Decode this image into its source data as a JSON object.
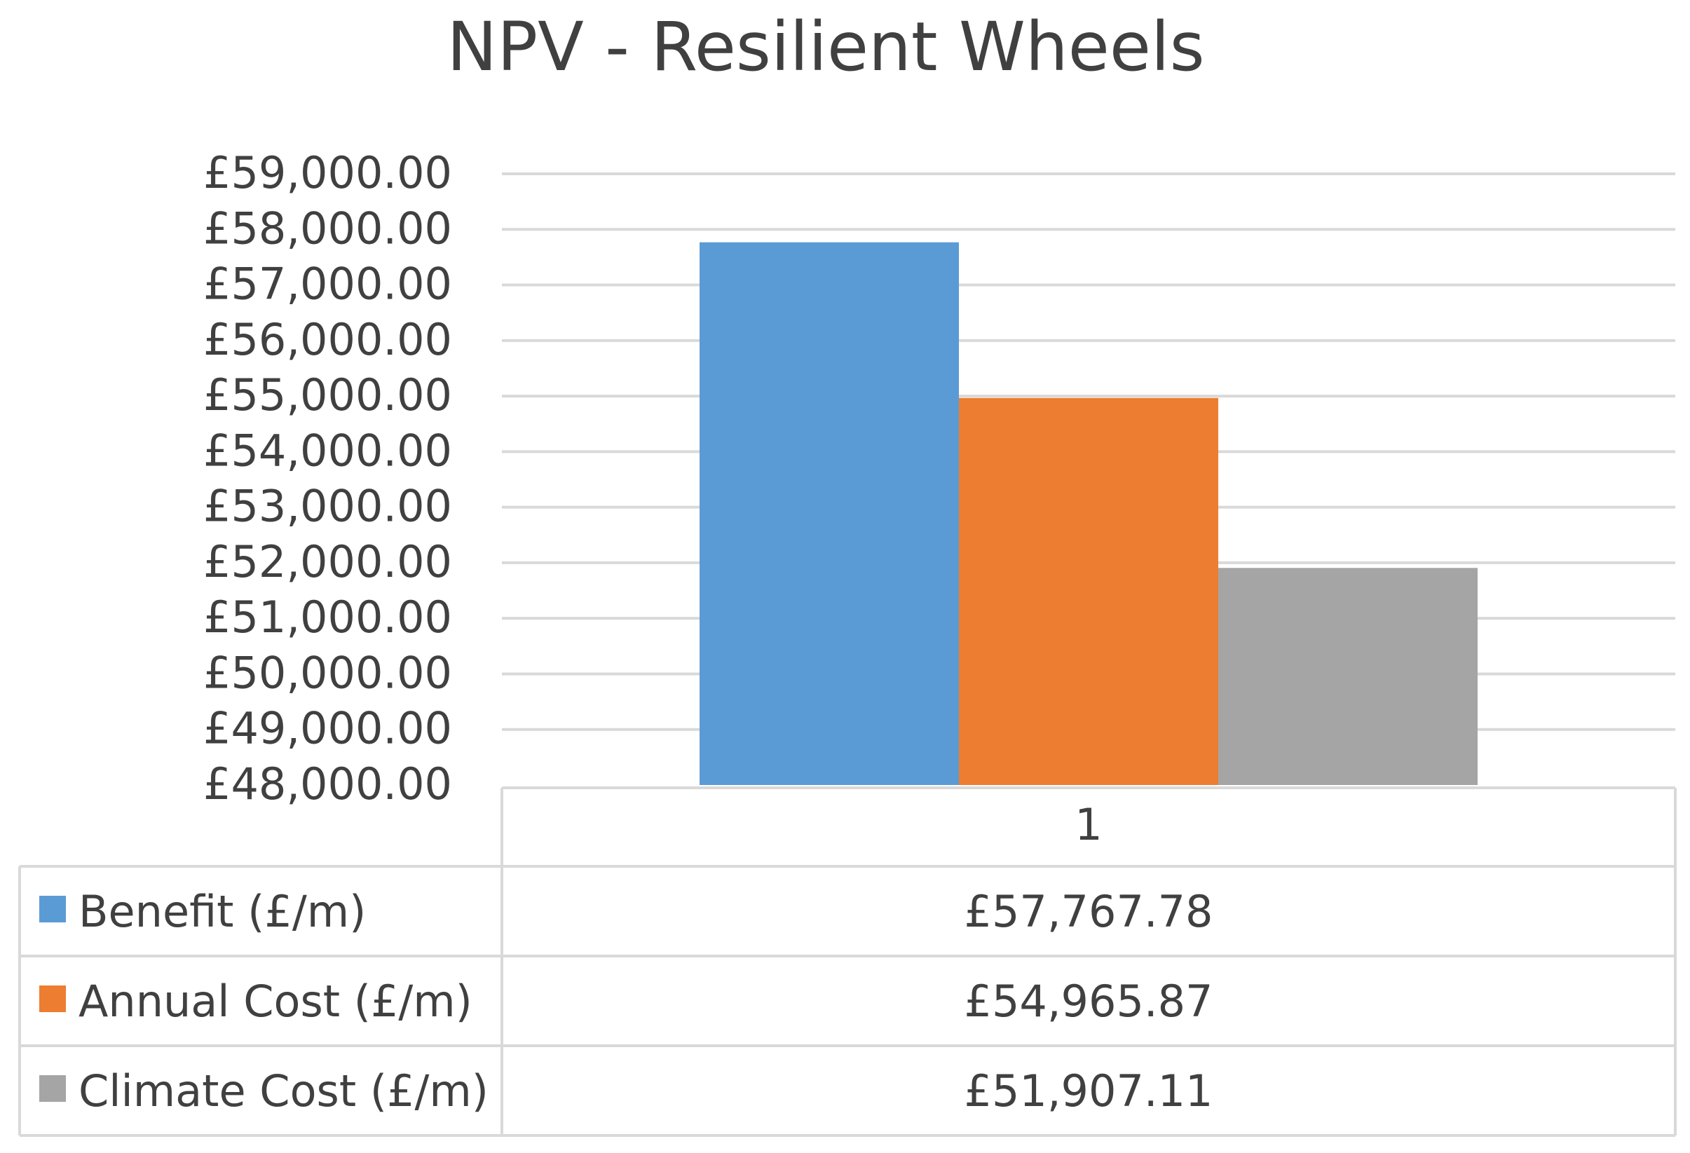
{
  "chart_data": {
    "type": "bar",
    "title": "NPV - Resilient Wheels",
    "categories": [
      "1"
    ],
    "series": [
      {
        "name": "Benefit (£/m)",
        "values": [
          57767.78
        ],
        "color": "#5B9BD5",
        "label": "£57,767.78"
      },
      {
        "name": "Annual Cost (£/m)",
        "values": [
          54965.87
        ],
        "color": "#ED7D31",
        "label": "£54,965.87"
      },
      {
        "name": "Climate Cost (£/m)",
        "values": [
          51907.11
        ],
        "color": "#A5A5A5",
        "label": "£51,907.11"
      }
    ],
    "ylim": [
      48000,
      59000
    ],
    "yticks": [
      {
        "value": 59000,
        "label": "£59,000.00"
      },
      {
        "value": 58000,
        "label": "£58,000.00"
      },
      {
        "value": 57000,
        "label": "£57,000.00"
      },
      {
        "value": 56000,
        "label": "£56,000.00"
      },
      {
        "value": 55000,
        "label": "£55,000.00"
      },
      {
        "value": 54000,
        "label": "£54,000.00"
      },
      {
        "value": 53000,
        "label": "£53,000.00"
      },
      {
        "value": 52000,
        "label": "£52,000.00"
      },
      {
        "value": 51000,
        "label": "£51,000.00"
      },
      {
        "value": 50000,
        "label": "£50,000.00"
      },
      {
        "value": 49000,
        "label": "£49,000.00"
      },
      {
        "value": 48000,
        "label": "£48,000.00"
      }
    ],
    "grid": true,
    "legend": "data-table",
    "text_color": "#404040",
    "grid_color": "#D9D9D9"
  }
}
